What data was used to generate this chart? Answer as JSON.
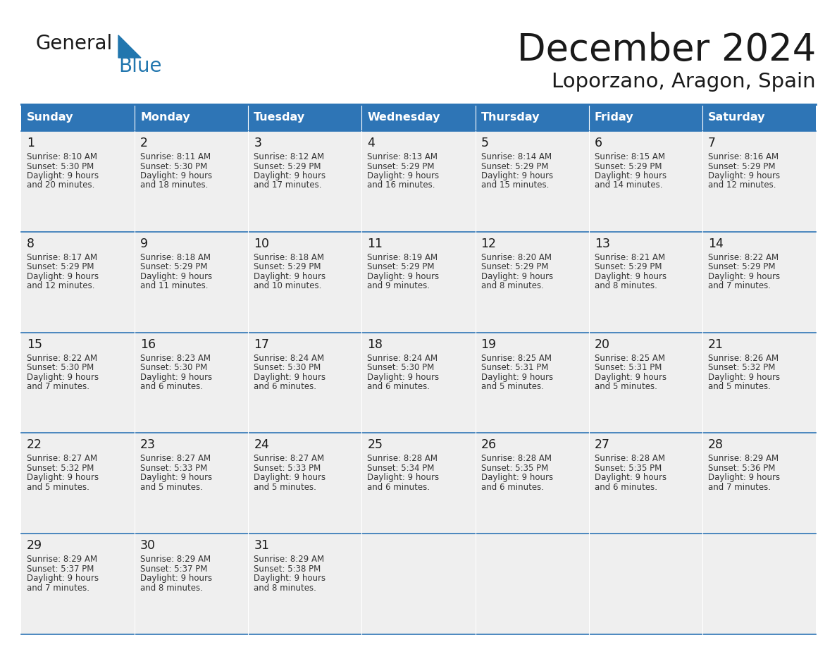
{
  "title": "December 2024",
  "subtitle": "Loporzano, Aragon, Spain",
  "header_color": "#2E75B6",
  "header_text_color": "#FFFFFF",
  "day_names": [
    "Sunday",
    "Monday",
    "Tuesday",
    "Wednesday",
    "Thursday",
    "Friday",
    "Saturday"
  ],
  "cell_bg_color": "#EFEFEF",
  "white_color": "#FFFFFF",
  "border_color": "#2E75B6",
  "text_color": "#1A1A1A",
  "info_text_color": "#333333",
  "title_color": "#1A1A1A",
  "logo_general_color": "#1A1A1A",
  "logo_blue_color": "#2176AE",
  "days": [
    {
      "day": 1,
      "col": 0,
      "row": 0,
      "sunrise": "8:10 AM",
      "sunset": "5:30 PM",
      "daylight_h": "9 hours",
      "daylight_m": "and 20 minutes."
    },
    {
      "day": 2,
      "col": 1,
      "row": 0,
      "sunrise": "8:11 AM",
      "sunset": "5:30 PM",
      "daylight_h": "9 hours",
      "daylight_m": "and 18 minutes."
    },
    {
      "day": 3,
      "col": 2,
      "row": 0,
      "sunrise": "8:12 AM",
      "sunset": "5:29 PM",
      "daylight_h": "9 hours",
      "daylight_m": "and 17 minutes."
    },
    {
      "day": 4,
      "col": 3,
      "row": 0,
      "sunrise": "8:13 AM",
      "sunset": "5:29 PM",
      "daylight_h": "9 hours",
      "daylight_m": "and 16 minutes."
    },
    {
      "day": 5,
      "col": 4,
      "row": 0,
      "sunrise": "8:14 AM",
      "sunset": "5:29 PM",
      "daylight_h": "9 hours",
      "daylight_m": "and 15 minutes."
    },
    {
      "day": 6,
      "col": 5,
      "row": 0,
      "sunrise": "8:15 AM",
      "sunset": "5:29 PM",
      "daylight_h": "9 hours",
      "daylight_m": "and 14 minutes."
    },
    {
      "day": 7,
      "col": 6,
      "row": 0,
      "sunrise": "8:16 AM",
      "sunset": "5:29 PM",
      "daylight_h": "9 hours",
      "daylight_m": "and 12 minutes."
    },
    {
      "day": 8,
      "col": 0,
      "row": 1,
      "sunrise": "8:17 AM",
      "sunset": "5:29 PM",
      "daylight_h": "9 hours",
      "daylight_m": "and 12 minutes."
    },
    {
      "day": 9,
      "col": 1,
      "row": 1,
      "sunrise": "8:18 AM",
      "sunset": "5:29 PM",
      "daylight_h": "9 hours",
      "daylight_m": "and 11 minutes."
    },
    {
      "day": 10,
      "col": 2,
      "row": 1,
      "sunrise": "8:18 AM",
      "sunset": "5:29 PM",
      "daylight_h": "9 hours",
      "daylight_m": "and 10 minutes."
    },
    {
      "day": 11,
      "col": 3,
      "row": 1,
      "sunrise": "8:19 AM",
      "sunset": "5:29 PM",
      "daylight_h": "9 hours",
      "daylight_m": "and 9 minutes."
    },
    {
      "day": 12,
      "col": 4,
      "row": 1,
      "sunrise": "8:20 AM",
      "sunset": "5:29 PM",
      "daylight_h": "9 hours",
      "daylight_m": "and 8 minutes."
    },
    {
      "day": 13,
      "col": 5,
      "row": 1,
      "sunrise": "8:21 AM",
      "sunset": "5:29 PM",
      "daylight_h": "9 hours",
      "daylight_m": "and 8 minutes."
    },
    {
      "day": 14,
      "col": 6,
      "row": 1,
      "sunrise": "8:22 AM",
      "sunset": "5:29 PM",
      "daylight_h": "9 hours",
      "daylight_m": "and 7 minutes."
    },
    {
      "day": 15,
      "col": 0,
      "row": 2,
      "sunrise": "8:22 AM",
      "sunset": "5:30 PM",
      "daylight_h": "9 hours",
      "daylight_m": "and 7 minutes."
    },
    {
      "day": 16,
      "col": 1,
      "row": 2,
      "sunrise": "8:23 AM",
      "sunset": "5:30 PM",
      "daylight_h": "9 hours",
      "daylight_m": "and 6 minutes."
    },
    {
      "day": 17,
      "col": 2,
      "row": 2,
      "sunrise": "8:24 AM",
      "sunset": "5:30 PM",
      "daylight_h": "9 hours",
      "daylight_m": "and 6 minutes."
    },
    {
      "day": 18,
      "col": 3,
      "row": 2,
      "sunrise": "8:24 AM",
      "sunset": "5:30 PM",
      "daylight_h": "9 hours",
      "daylight_m": "and 6 minutes."
    },
    {
      "day": 19,
      "col": 4,
      "row": 2,
      "sunrise": "8:25 AM",
      "sunset": "5:31 PM",
      "daylight_h": "9 hours",
      "daylight_m": "and 5 minutes."
    },
    {
      "day": 20,
      "col": 5,
      "row": 2,
      "sunrise": "8:25 AM",
      "sunset": "5:31 PM",
      "daylight_h": "9 hours",
      "daylight_m": "and 5 minutes."
    },
    {
      "day": 21,
      "col": 6,
      "row": 2,
      "sunrise": "8:26 AM",
      "sunset": "5:32 PM",
      "daylight_h": "9 hours",
      "daylight_m": "and 5 minutes."
    },
    {
      "day": 22,
      "col": 0,
      "row": 3,
      "sunrise": "8:27 AM",
      "sunset": "5:32 PM",
      "daylight_h": "9 hours",
      "daylight_m": "and 5 minutes."
    },
    {
      "day": 23,
      "col": 1,
      "row": 3,
      "sunrise": "8:27 AM",
      "sunset": "5:33 PM",
      "daylight_h": "9 hours",
      "daylight_m": "and 5 minutes."
    },
    {
      "day": 24,
      "col": 2,
      "row": 3,
      "sunrise": "8:27 AM",
      "sunset": "5:33 PM",
      "daylight_h": "9 hours",
      "daylight_m": "and 5 minutes."
    },
    {
      "day": 25,
      "col": 3,
      "row": 3,
      "sunrise": "8:28 AM",
      "sunset": "5:34 PM",
      "daylight_h": "9 hours",
      "daylight_m": "and 6 minutes."
    },
    {
      "day": 26,
      "col": 4,
      "row": 3,
      "sunrise": "8:28 AM",
      "sunset": "5:35 PM",
      "daylight_h": "9 hours",
      "daylight_m": "and 6 minutes."
    },
    {
      "day": 27,
      "col": 5,
      "row": 3,
      "sunrise": "8:28 AM",
      "sunset": "5:35 PM",
      "daylight_h": "9 hours",
      "daylight_m": "and 6 minutes."
    },
    {
      "day": 28,
      "col": 6,
      "row": 3,
      "sunrise": "8:29 AM",
      "sunset": "5:36 PM",
      "daylight_h": "9 hours",
      "daylight_m": "and 7 minutes."
    },
    {
      "day": 29,
      "col": 0,
      "row": 4,
      "sunrise": "8:29 AM",
      "sunset": "5:37 PM",
      "daylight_h": "9 hours",
      "daylight_m": "and 7 minutes."
    },
    {
      "day": 30,
      "col": 1,
      "row": 4,
      "sunrise": "8:29 AM",
      "sunset": "5:37 PM",
      "daylight_h": "9 hours",
      "daylight_m": "and 8 minutes."
    },
    {
      "day": 31,
      "col": 2,
      "row": 4,
      "sunrise": "8:29 AM",
      "sunset": "5:38 PM",
      "daylight_h": "9 hours",
      "daylight_m": "and 8 minutes."
    }
  ]
}
